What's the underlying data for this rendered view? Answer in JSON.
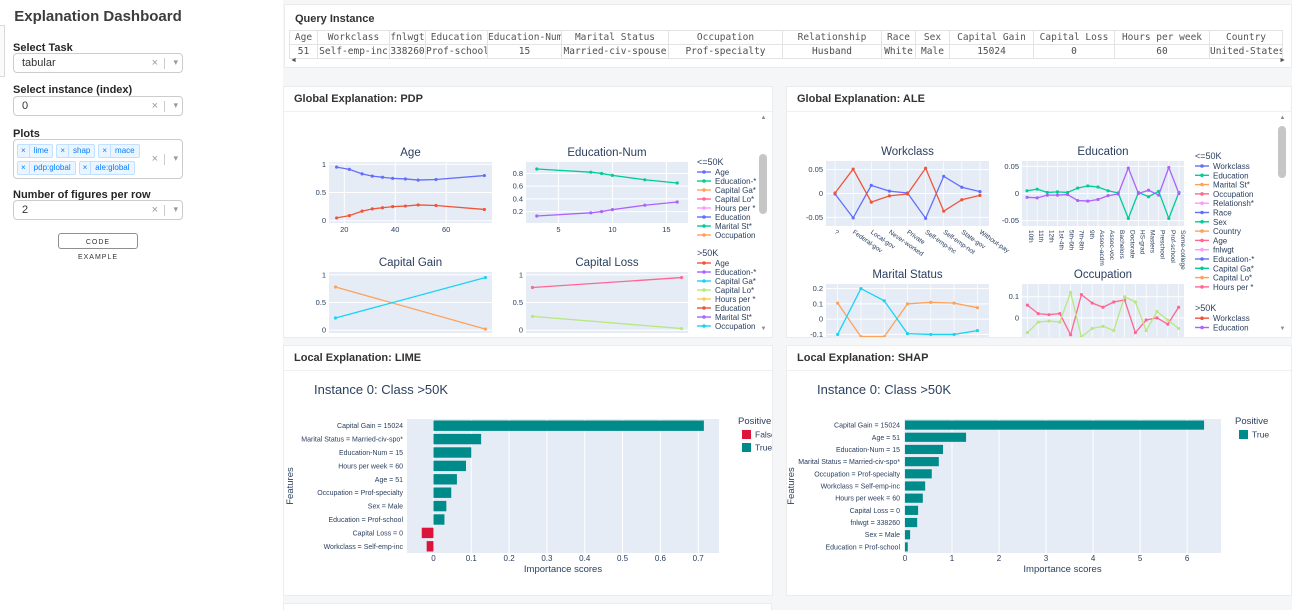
{
  "app": {
    "title": "Explanation Dashboard",
    "background": "#f5f6f7"
  },
  "sidebar": {
    "title": "Explanation Dashboard",
    "select_task": {
      "label": "Select Task",
      "value": "tabular"
    },
    "select_instance": {
      "label": "Select instance (index)",
      "value": "0"
    },
    "plots": {
      "label": "Plots",
      "tags": [
        "lime",
        "shap",
        "mace",
        "pdp:global",
        "ale:global"
      ]
    },
    "figures_per_row": {
      "label": "Number of figures per row",
      "value": "2"
    },
    "code_example_button": "CODE EXAMPLE",
    "tag_colors": {
      "background": "#ebf5ff",
      "border": "#c2e0ff",
      "text": "#007eff"
    }
  },
  "query_instance": {
    "title": "Query Instance",
    "columns": [
      "Age",
      "Workclass",
      "fnlwgt",
      "Education",
      "Education-Num",
      "Marital Status",
      "Occupation",
      "Relationship",
      "Race",
      "Sex",
      "Capital Gain",
      "Capital Loss",
      "Hours per week",
      "Country"
    ],
    "rows": [
      [
        "51",
        "Self-emp-inc",
        "338260",
        "Prof-school",
        "15",
        "Married-civ-spouse",
        "Prof-specialty",
        "Husband",
        "White",
        "Male",
        "15024",
        "0",
        "60",
        "United-States"
      ]
    ]
  },
  "panels": {
    "pdp": {
      "title": "Global Explanation: PDP"
    },
    "ale": {
      "title": "Global Explanation: ALE"
    },
    "lime": {
      "title": "Local Explanation: LIME"
    },
    "shap": {
      "title": "Local Explanation: SHAP"
    }
  },
  "chart_data": [
    {
      "id": "pdp",
      "type": "line",
      "panel": "Global Explanation: PDP",
      "legend_groups": [
        {
          "title": "<=50K",
          "items": [
            {
              "label": "Age",
              "color": "#636EFA"
            },
            {
              "label": "Education-*",
              "color": "#00CC96"
            },
            {
              "label": "Capital Ga*",
              "color": "#FFA15A"
            },
            {
              "label": "Capital Lo*",
              "color": "#FF6692"
            },
            {
              "label": "Hours per *",
              "color": "#FF97FF"
            },
            {
              "label": "Education",
              "color": "#636EFA"
            },
            {
              "label": "Marital St*",
              "color": "#00CC96"
            },
            {
              "label": "Occupation",
              "color": "#FFA15A"
            }
          ]
        },
        {
          "title": ">50K",
          "items": [
            {
              "label": "Age",
              "color": "#EF553B"
            },
            {
              "label": "Education-*",
              "color": "#AB63FA"
            },
            {
              "label": "Capital Ga*",
              "color": "#19D3F3"
            },
            {
              "label": "Capital Lo*",
              "color": "#B6E880"
            },
            {
              "label": "Hours per *",
              "color": "#FECB52"
            },
            {
              "label": "Education",
              "color": "#EF553B"
            },
            {
              "label": "Marital St*",
              "color": "#AB63FA"
            },
            {
              "label": "Occupation",
              "color": "#19D3F3"
            }
          ]
        }
      ],
      "subplots": [
        {
          "title": "Age",
          "xlim": [
            14,
            78
          ],
          "xticks": [
            20,
            40,
            60
          ],
          "ylim": [
            -0.04,
            1.04
          ],
          "yticks": [
            0,
            0.5,
            1
          ],
          "series": [
            {
              "name": "<=50K Age",
              "color": "#636EFA",
              "x": [
                17,
                22,
                27,
                31,
                35,
                39,
                44,
                49,
                56,
                75
              ],
              "y": [
                0.95,
                0.91,
                0.83,
                0.79,
                0.77,
                0.75,
                0.74,
                0.72,
                0.73,
                0.8
              ]
            },
            {
              "name": ">50K Age",
              "color": "#EF553B",
              "x": [
                17,
                22,
                27,
                31,
                35,
                39,
                44,
                49,
                56,
                75
              ],
              "y": [
                0.05,
                0.09,
                0.17,
                0.21,
                0.23,
                0.25,
                0.26,
                0.28,
                0.27,
                0.2
              ]
            }
          ]
        },
        {
          "title": "Education-Num",
          "xlim": [
            2,
            17
          ],
          "xticks": [
            5,
            10,
            15
          ],
          "ylim": [
            0.02,
            0.98
          ],
          "yticks": [
            0.2,
            0.4,
            0.6,
            0.8
          ],
          "series": [
            {
              "name": "<=50K Education-Num",
              "color": "#00CC96",
              "x": [
                3,
                8,
                9,
                10,
                13,
                16
              ],
              "y": [
                0.87,
                0.82,
                0.8,
                0.77,
                0.7,
                0.65
              ]
            },
            {
              "name": ">50K Education-Num",
              "color": "#AB63FA",
              "x": [
                3,
                8,
                9,
                10,
                13,
                16
              ],
              "y": [
                0.13,
                0.18,
                0.2,
                0.23,
                0.3,
                0.35
              ]
            }
          ]
        },
        {
          "title": "Capital Gain",
          "xlim": [
            0,
            1
          ],
          "xticks": [],
          "ylim": [
            -0.05,
            1.05
          ],
          "yticks": [
            0,
            0.5,
            1
          ],
          "series": [
            {
              "name": "<=50K Capital Gain",
              "color": "#FFA15A",
              "x": [
                0.04,
                0.96
              ],
              "y": [
                0.78,
                0.02
              ]
            },
            {
              "name": ">50K Capital Gain",
              "color": "#19D3F3",
              "x": [
                0.04,
                0.96
              ],
              "y": [
                0.22,
                0.95
              ]
            }
          ]
        },
        {
          "title": "Capital Loss",
          "xlim": [
            0,
            1
          ],
          "xticks": [],
          "ylim": [
            -0.05,
            1.05
          ],
          "yticks": [
            0,
            0.5,
            1
          ],
          "series": [
            {
              "name": "<=50K Capital Loss",
              "color": "#FF6692",
              "x": [
                0.04,
                0.96
              ],
              "y": [
                0.77,
                0.95
              ]
            },
            {
              "name": ">50K Capital Loss",
              "color": "#B6E880",
              "x": [
                0.04,
                0.96
              ],
              "y": [
                0.25,
                0.03
              ]
            }
          ]
        }
      ]
    },
    {
      "id": "ale",
      "type": "line",
      "panel": "Global Explanation: ALE",
      "legend_groups": [
        {
          "title": "<=50K",
          "items": [
            {
              "label": "Workclass",
              "color": "#636EFA"
            },
            {
              "label": "Education",
              "color": "#00CC96"
            },
            {
              "label": "Marital St*",
              "color": "#FFA15A"
            },
            {
              "label": "Occupation",
              "color": "#FF6692"
            },
            {
              "label": "Relationsh*",
              "color": "#FF97FF"
            },
            {
              "label": "Race",
              "color": "#636EFA"
            },
            {
              "label": "Sex",
              "color": "#00CC96"
            },
            {
              "label": "Country",
              "color": "#FFA15A"
            },
            {
              "label": "Age",
              "color": "#FF6692"
            },
            {
              "label": "fnlwgt",
              "color": "#FF97FF"
            },
            {
              "label": "Education-*",
              "color": "#636EFA"
            },
            {
              "label": "Capital Ga*",
              "color": "#00CC96"
            },
            {
              "label": "Capital Lo*",
              "color": "#FFA15A"
            },
            {
              "label": "Hours per *",
              "color": "#FF6692"
            }
          ]
        },
        {
          "title": ">50K",
          "items": [
            {
              "label": "Workclass",
              "color": "#EF553B"
            },
            {
              "label": "Education",
              "color": "#AB63FA"
            }
          ]
        }
      ],
      "subplots": [
        {
          "title": "Workclass",
          "categories": [
            "?",
            "Federal-gov",
            "Local-gov",
            "Never-worked",
            "Private",
            "Self-emp-inc",
            "Self-emp-not-in*",
            "State-gov",
            "Without-pay"
          ],
          "tick_style": "angled",
          "ylim": [
            -0.068,
            0.068
          ],
          "yticks": [
            -0.05,
            0,
            0.05
          ],
          "series": [
            {
              "name": "<=50K Workclass",
              "color": "#636EFA",
              "y": [
                -0.001,
                -0.051,
                0.017,
                0.005,
                0.001,
                -0.052,
                0.036,
                0.013,
                0.004
              ]
            },
            {
              "name": ">50K Workclass",
              "color": "#EF553B",
              "y": [
                0.001,
                0.051,
                -0.018,
                -0.005,
                -0.001,
                0.053,
                -0.037,
                -0.013,
                -0.004
              ]
            }
          ]
        },
        {
          "title": "Education",
          "categories": [
            "10th",
            "11th",
            "12th",
            "1st-4th",
            "5th-6th",
            "7th-8th",
            "9th",
            "Assoc-acdm",
            "Assoc-voc",
            "Bachelors",
            "Doctorate",
            "HS-grad",
            "Masters",
            "Preschool",
            "Prof-school",
            "Some-college"
          ],
          "tick_style": "vertical",
          "ylim": [
            -0.06,
            0.06
          ],
          "yticks": [
            -0.05,
            0,
            0.05
          ],
          "series": [
            {
              "name": "<=50K Education",
              "color": "#00CC96",
              "y": [
                0.005,
                0.008,
                0.002,
                0.003,
                0.002,
                0.01,
                0.014,
                0.012,
                0.005,
                0.001,
                -0.046,
                0.002,
                -0.006,
                0.004,
                -0.046,
                0.002
              ]
            },
            {
              "name": ">50K Education",
              "color": "#AB63FA",
              "y": [
                -0.007,
                -0.008,
                -0.003,
                -0.003,
                -0.002,
                -0.013,
                -0.014,
                -0.011,
                -0.004,
                -0.001,
                0.047,
                0,
                0.006,
                -0.003,
                0.048,
                0
              ]
            }
          ]
        },
        {
          "title": "Marital Status",
          "n_points": 7,
          "labels_clipped": true,
          "ylim": [
            -0.13,
            0.23
          ],
          "yticks": [
            -0.1,
            0,
            0.1,
            0.2
          ],
          "series": [
            {
              "name": "<=50K Marital Status",
              "color": "#FFA15A",
              "y": [
                0.105,
                -0.115,
                -0.115,
                0.1,
                0.11,
                0.105,
                0.075
              ]
            },
            {
              "name": ">50K Marital Status",
              "color": "#19D3F3",
              "y": [
                -0.1,
                0.2,
                0.12,
                -0.095,
                -0.1,
                -0.1,
                -0.075
              ]
            }
          ]
        },
        {
          "title": "Occupation",
          "n_points": 15,
          "labels_clipped": true,
          "ylim": [
            -0.1,
            0.16
          ],
          "yticks": [
            0,
            0.1
          ],
          "series": [
            {
              "name": "<=50K Occupation",
              "color": "#FF6692",
              "y": [
                0.06,
                0.02,
                0.015,
                0.02,
                -0.08,
                0.11,
                0.07,
                0.05,
                0.075,
                0.085,
                -0.07,
                -0.01,
                0,
                -0.03,
                0.05
              ]
            },
            {
              "name": ">50K Occupation",
              "color": "#B6E880",
              "y": [
                -0.07,
                -0.02,
                -0.015,
                -0.02,
                0.12,
                -0.09,
                -0.05,
                -0.04,
                -0.06,
                0.1,
                0.075,
                -0.06,
                0.03,
                -0.01,
                -0.05
              ]
            }
          ]
        }
      ]
    },
    {
      "id": "lime",
      "type": "bar",
      "orientation": "horizontal",
      "panel": "Local Explanation: LIME",
      "title": "Instance 0: Class >50K",
      "xlabel": "Importance scores",
      "ylabel": "Features",
      "features": [
        "Capital Gain = 15024",
        "Marital Status = Married-civ-spo*",
        "Education-Num = 15",
        "Hours per week = 60",
        "Age = 51",
        "Occupation = Prof-specialty",
        "Sex = Male",
        "Education = Prof-school",
        "Capital Loss = 0",
        "Workclass = Self-emp-inc"
      ],
      "values": [
        0.715,
        0.126,
        0.1,
        0.086,
        0.062,
        0.047,
        0.034,
        0.029,
        -0.031,
        -0.018
      ],
      "xticks": [
        0,
        0.1,
        0.2,
        0.3,
        0.4,
        0.5,
        0.6,
        0.7
      ],
      "xlim": [
        -0.07,
        0.755
      ],
      "colors": {
        "positive": "#008B8B",
        "negative": "#DC143C"
      },
      "legend": {
        "title": "Positive",
        "items": [
          {
            "label": "False",
            "color": "#DC143C"
          },
          {
            "label": "True",
            "color": "#008B8B"
          }
        ]
      }
    },
    {
      "id": "shap",
      "type": "bar",
      "orientation": "horizontal",
      "panel": "Local Explanation: SHAP",
      "title": "Instance 0: Class >50K",
      "xlabel": "Importance scores",
      "ylabel": "Features",
      "features": [
        "Capital Gain = 15024",
        "Age = 51",
        "Education-Num = 15",
        "Marital Status = Married-civ-spo*",
        "Occupation = Prof-specialty",
        "Workclass = Self-emp-inc",
        "Hours per week = 60",
        "Capital Loss = 0",
        "fnlwgt = 338260",
        "Sex = Male",
        "Education = Prof-school"
      ],
      "values": [
        6.36,
        1.3,
        0.81,
        0.72,
        0.57,
        0.43,
        0.38,
        0.28,
        0.26,
        0.11,
        0.06
      ],
      "xticks": [
        0,
        1,
        2,
        3,
        4,
        5,
        6
      ],
      "xlim": [
        -0.02,
        6.72
      ],
      "colors": {
        "positive": "#008B8B",
        "negative": "#DC143C"
      },
      "legend": {
        "title": "Positive",
        "items": [
          {
            "label": "True",
            "color": "#008B8B"
          }
        ]
      }
    }
  ],
  "chart_style": {
    "plot_background": "#E5ECF6",
    "grid_color": "#ffffff",
    "text_color": "#2a3f5f"
  }
}
